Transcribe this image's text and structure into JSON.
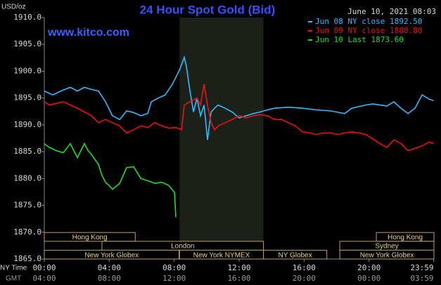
{
  "chart_data": {
    "type": "line",
    "title": "24 Hour Spot Gold (Bid)",
    "y_label": "USD/oz",
    "timestamp": "June 10, 2021 08:03",
    "source": "www.kitco.com",
    "x_label": "NY Time",
    "x2_label": "GMT",
    "xlim": [
      0,
      24
    ],
    "ylim": [
      1865,
      1910
    ],
    "yticks": [
      {
        "value": 1910,
        "label": "1910.0"
      },
      {
        "value": 1905,
        "label": "1905.0"
      },
      {
        "value": 1900,
        "label": "1900.0"
      },
      {
        "value": 1895,
        "label": "1895.0"
      },
      {
        "value": 1890,
        "label": "1890.0"
      },
      {
        "value": 1885,
        "label": "1885.0"
      },
      {
        "value": 1880,
        "label": "1880.0"
      },
      {
        "value": 1875,
        "label": "1875.0"
      },
      {
        "value": 1870,
        "label": "1870.0"
      },
      {
        "value": 1865,
        "label": "1865.0"
      }
    ],
    "xticks": [
      {
        "value": 0,
        "label": "00:00"
      },
      {
        "value": 4,
        "label": "04:00"
      },
      {
        "value": 8,
        "label": "08:00"
      },
      {
        "value": 12,
        "label": "12:00"
      },
      {
        "value": 16,
        "label": "16:00"
      },
      {
        "value": 20,
        "label": "20:00"
      },
      {
        "value": 23.98,
        "label": "23:59"
      }
    ],
    "x2ticks": [
      {
        "value": 0,
        "label": "04:00"
      },
      {
        "value": 4,
        "label": "08:00"
      },
      {
        "value": 8,
        "label": "12:00"
      },
      {
        "value": 12,
        "label": "16:00"
      },
      {
        "value": 16,
        "label": "20:00"
      },
      {
        "value": 20,
        "label": "00:00"
      },
      {
        "value": 23.98,
        "label": "03:59"
      }
    ],
    "shaded_xrange": [
      8.33,
      13.5
    ],
    "legend": "top-right",
    "series": [
      {
        "name": "Jun 08 NY close 1892.50",
        "color": "#33bbff",
        "x": [
          0,
          0.52,
          1.17,
          1.6,
          2.04,
          2.47,
          2.9,
          3.34,
          3.77,
          4.2,
          4.64,
          5.07,
          5.5,
          5.94,
          6.37,
          6.59,
          7.02,
          7.45,
          7.89,
          8.32,
          8.62,
          8.75,
          8.97,
          9.19,
          9.4,
          9.62,
          9.84,
          10.05,
          10.27,
          10.49,
          10.7,
          11.14,
          11.57,
          12,
          12.44,
          12.87,
          13.3,
          13.74,
          14.17,
          15.03,
          15.9,
          16.77,
          17.63,
          18.5,
          18.93,
          19.8,
          20.23,
          21.1,
          21.53,
          21.97,
          22.4,
          22.83,
          23.27,
          23.7,
          23.98
        ],
        "values": [
          1896.3,
          1895.6,
          1896.5,
          1897,
          1896.3,
          1897,
          1896.6,
          1896.3,
          1894.3,
          1891.7,
          1891,
          1892.6,
          1892.3,
          1891.7,
          1892.1,
          1894.3,
          1895,
          1895.6,
          1897.6,
          1900.2,
          1902.6,
          1900.9,
          1896.3,
          1892.4,
          1895,
          1891.7,
          1893.7,
          1887.2,
          1892.4,
          1893.1,
          1893.7,
          1893.1,
          1892.4,
          1891.3,
          1891.7,
          1892.1,
          1892.4,
          1892.8,
          1893.1,
          1893.3,
          1893.1,
          1892.8,
          1892.6,
          1892.1,
          1893.1,
          1893.7,
          1893.9,
          1893.5,
          1894.3,
          1893.1,
          1892.1,
          1893.1,
          1895.6,
          1894.8,
          1894.5
        ]
      },
      {
        "name": "Jun 09 NY close 1888.80",
        "color": "#ee1111",
        "x": [
          0,
          0.3,
          0.74,
          1.17,
          1.6,
          2.04,
          2.47,
          2.9,
          3.34,
          3.77,
          4.2,
          4.64,
          5.07,
          5.5,
          5.94,
          6.37,
          6.8,
          7.24,
          7.67,
          8.1,
          8.45,
          8.62,
          8.97,
          9.4,
          9.62,
          9.84,
          10.05,
          10.27,
          10.49,
          10.7,
          11.14,
          11.57,
          12,
          12.44,
          12.87,
          13.3,
          13.74,
          14.17,
          14.6,
          15.03,
          15.47,
          15.9,
          16.34,
          16.77,
          17.2,
          17.63,
          18.07,
          18.5,
          18.93,
          19.37,
          19.8,
          20.23,
          20.67,
          21.1,
          21.53,
          21.97,
          22.4,
          22.83,
          23.27,
          23.7,
          23.98
        ],
        "values": [
          1894.3,
          1893.7,
          1894,
          1894.3,
          1893.7,
          1893.1,
          1892.4,
          1891.7,
          1890.4,
          1891,
          1890.4,
          1889.8,
          1888.5,
          1889.1,
          1889.8,
          1889.5,
          1890.4,
          1889.8,
          1889.4,
          1889.5,
          1889.1,
          1893.7,
          1894.3,
          1895,
          1893.7,
          1897.6,
          1893.7,
          1890.4,
          1889.1,
          1889.8,
          1890.4,
          1891,
          1891.7,
          1891.3,
          1891.7,
          1891.9,
          1891.7,
          1891,
          1891,
          1890.4,
          1889.8,
          1888.7,
          1888.5,
          1888.2,
          1888.5,
          1888.5,
          1888.2,
          1888.5,
          1888.7,
          1888.5,
          1888.2,
          1887.4,
          1886.5,
          1885.8,
          1887.2,
          1886.5,
          1885.2,
          1885.6,
          1886.1,
          1886.8,
          1886.5
        ]
      },
      {
        "name": "Jun 10 Last 1873.60",
        "color": "#22dd22",
        "x": [
          0,
          0.3,
          0.74,
          1.17,
          1.6,
          1.82,
          2.04,
          2.25,
          2.47,
          2.69,
          2.9,
          3.34,
          3.55,
          3.77,
          3.99,
          4.2,
          4.64,
          5.07,
          5.5,
          5.94,
          6.37,
          6.8,
          7.24,
          7.67,
          8.02,
          8.1
        ],
        "values": [
          1886.5,
          1885.8,
          1885.2,
          1884.8,
          1886.5,
          1885.2,
          1883.9,
          1885.2,
          1886.5,
          1885.2,
          1884.5,
          1882.6,
          1880.6,
          1879.3,
          1878.7,
          1878,
          1879.1,
          1882,
          1882.2,
          1880,
          1879.6,
          1879.1,
          1879.3,
          1878.7,
          1877.4,
          1872.8
        ]
      }
    ],
    "sessions": [
      {
        "label": "Hong Kong",
        "row": 0,
        "start": 0,
        "end": 5.6
      },
      {
        "label": "Hong Kong",
        "row": 0,
        "start": 20.45,
        "end": 24
      },
      {
        "label": "London",
        "row": 1,
        "start": 3.55,
        "end": 13.5
      },
      {
        "label": "Sydney",
        "row": 1,
        "start": 18.2,
        "end": 24
      },
      {
        "label": "New York Globex",
        "row": 2,
        "start": 0,
        "end": 8.3
      },
      {
        "label": "New York NYMEX",
        "row": 2,
        "start": 8.33,
        "end": 13.5
      },
      {
        "label": "NY Globex",
        "row": 2,
        "start": 13.5,
        "end": 17.4
      },
      {
        "label": "New York Globex",
        "row": 2,
        "start": 18.2,
        "end": 24
      }
    ]
  }
}
